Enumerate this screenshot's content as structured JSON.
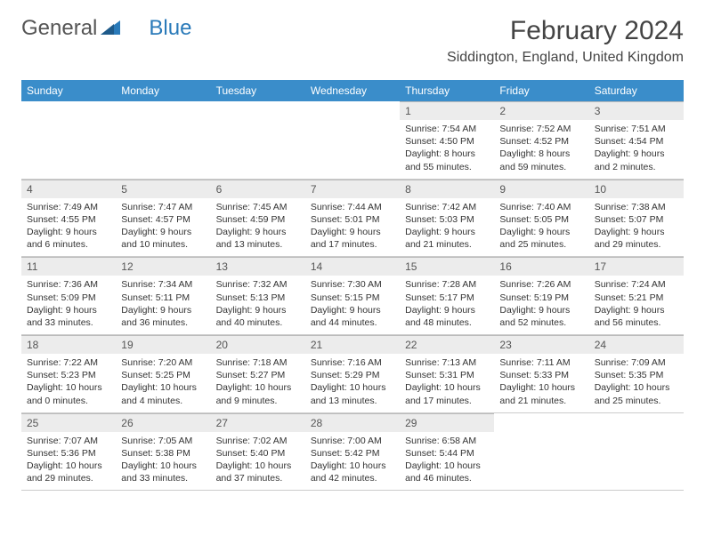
{
  "logo": {
    "word1": "General",
    "word2": "Blue"
  },
  "header": {
    "month_title": "February 2024",
    "location": "Siddington, England, United Kingdom"
  },
  "colors": {
    "header_bg": "#3a8dca",
    "header_text": "#ffffff",
    "daynum_bg": "#ececec",
    "border": "#cccccc",
    "logo_accent": "#2a7ab9"
  },
  "weekdays": [
    "Sunday",
    "Monday",
    "Tuesday",
    "Wednesday",
    "Thursday",
    "Friday",
    "Saturday"
  ],
  "weeks": [
    [
      null,
      null,
      null,
      null,
      {
        "n": "1",
        "sr": "Sunrise: 7:54 AM",
        "ss": "Sunset: 4:50 PM",
        "dl": "Daylight: 8 hours and 55 minutes."
      },
      {
        "n": "2",
        "sr": "Sunrise: 7:52 AM",
        "ss": "Sunset: 4:52 PM",
        "dl": "Daylight: 8 hours and 59 minutes."
      },
      {
        "n": "3",
        "sr": "Sunrise: 7:51 AM",
        "ss": "Sunset: 4:54 PM",
        "dl": "Daylight: 9 hours and 2 minutes."
      }
    ],
    [
      {
        "n": "4",
        "sr": "Sunrise: 7:49 AM",
        "ss": "Sunset: 4:55 PM",
        "dl": "Daylight: 9 hours and 6 minutes."
      },
      {
        "n": "5",
        "sr": "Sunrise: 7:47 AM",
        "ss": "Sunset: 4:57 PM",
        "dl": "Daylight: 9 hours and 10 minutes."
      },
      {
        "n": "6",
        "sr": "Sunrise: 7:45 AM",
        "ss": "Sunset: 4:59 PM",
        "dl": "Daylight: 9 hours and 13 minutes."
      },
      {
        "n": "7",
        "sr": "Sunrise: 7:44 AM",
        "ss": "Sunset: 5:01 PM",
        "dl": "Daylight: 9 hours and 17 minutes."
      },
      {
        "n": "8",
        "sr": "Sunrise: 7:42 AM",
        "ss": "Sunset: 5:03 PM",
        "dl": "Daylight: 9 hours and 21 minutes."
      },
      {
        "n": "9",
        "sr": "Sunrise: 7:40 AM",
        "ss": "Sunset: 5:05 PM",
        "dl": "Daylight: 9 hours and 25 minutes."
      },
      {
        "n": "10",
        "sr": "Sunrise: 7:38 AM",
        "ss": "Sunset: 5:07 PM",
        "dl": "Daylight: 9 hours and 29 minutes."
      }
    ],
    [
      {
        "n": "11",
        "sr": "Sunrise: 7:36 AM",
        "ss": "Sunset: 5:09 PM",
        "dl": "Daylight: 9 hours and 33 minutes."
      },
      {
        "n": "12",
        "sr": "Sunrise: 7:34 AM",
        "ss": "Sunset: 5:11 PM",
        "dl": "Daylight: 9 hours and 36 minutes."
      },
      {
        "n": "13",
        "sr": "Sunrise: 7:32 AM",
        "ss": "Sunset: 5:13 PM",
        "dl": "Daylight: 9 hours and 40 minutes."
      },
      {
        "n": "14",
        "sr": "Sunrise: 7:30 AM",
        "ss": "Sunset: 5:15 PM",
        "dl": "Daylight: 9 hours and 44 minutes."
      },
      {
        "n": "15",
        "sr": "Sunrise: 7:28 AM",
        "ss": "Sunset: 5:17 PM",
        "dl": "Daylight: 9 hours and 48 minutes."
      },
      {
        "n": "16",
        "sr": "Sunrise: 7:26 AM",
        "ss": "Sunset: 5:19 PM",
        "dl": "Daylight: 9 hours and 52 minutes."
      },
      {
        "n": "17",
        "sr": "Sunrise: 7:24 AM",
        "ss": "Sunset: 5:21 PM",
        "dl": "Daylight: 9 hours and 56 minutes."
      }
    ],
    [
      {
        "n": "18",
        "sr": "Sunrise: 7:22 AM",
        "ss": "Sunset: 5:23 PM",
        "dl": "Daylight: 10 hours and 0 minutes."
      },
      {
        "n": "19",
        "sr": "Sunrise: 7:20 AM",
        "ss": "Sunset: 5:25 PM",
        "dl": "Daylight: 10 hours and 4 minutes."
      },
      {
        "n": "20",
        "sr": "Sunrise: 7:18 AM",
        "ss": "Sunset: 5:27 PM",
        "dl": "Daylight: 10 hours and 9 minutes."
      },
      {
        "n": "21",
        "sr": "Sunrise: 7:16 AM",
        "ss": "Sunset: 5:29 PM",
        "dl": "Daylight: 10 hours and 13 minutes."
      },
      {
        "n": "22",
        "sr": "Sunrise: 7:13 AM",
        "ss": "Sunset: 5:31 PM",
        "dl": "Daylight: 10 hours and 17 minutes."
      },
      {
        "n": "23",
        "sr": "Sunrise: 7:11 AM",
        "ss": "Sunset: 5:33 PM",
        "dl": "Daylight: 10 hours and 21 minutes."
      },
      {
        "n": "24",
        "sr": "Sunrise: 7:09 AM",
        "ss": "Sunset: 5:35 PM",
        "dl": "Daylight: 10 hours and 25 minutes."
      }
    ],
    [
      {
        "n": "25",
        "sr": "Sunrise: 7:07 AM",
        "ss": "Sunset: 5:36 PM",
        "dl": "Daylight: 10 hours and 29 minutes."
      },
      {
        "n": "26",
        "sr": "Sunrise: 7:05 AM",
        "ss": "Sunset: 5:38 PM",
        "dl": "Daylight: 10 hours and 33 minutes."
      },
      {
        "n": "27",
        "sr": "Sunrise: 7:02 AM",
        "ss": "Sunset: 5:40 PM",
        "dl": "Daylight: 10 hours and 37 minutes."
      },
      {
        "n": "28",
        "sr": "Sunrise: 7:00 AM",
        "ss": "Sunset: 5:42 PM",
        "dl": "Daylight: 10 hours and 42 minutes."
      },
      {
        "n": "29",
        "sr": "Sunrise: 6:58 AM",
        "ss": "Sunset: 5:44 PM",
        "dl": "Daylight: 10 hours and 46 minutes."
      },
      null,
      null
    ]
  ]
}
